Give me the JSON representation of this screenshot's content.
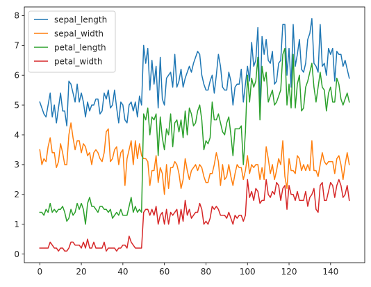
{
  "chart_data": {
    "type": "line",
    "title": "",
    "xlabel": "",
    "ylabel": "",
    "xlim": [
      -7.45,
      156.45
    ],
    "ylim": [
      -0.29,
      8.29
    ],
    "xticks": [
      0,
      20,
      40,
      60,
      80,
      100,
      120,
      140
    ],
    "yticks": [
      0,
      1,
      2,
      3,
      4,
      5,
      6,
      7,
      8
    ],
    "grid": false,
    "legend": "upper left",
    "x": [
      0,
      1,
      2,
      3,
      4,
      5,
      6,
      7,
      8,
      9,
      10,
      11,
      12,
      13,
      14,
      15,
      16,
      17,
      18,
      19,
      20,
      21,
      22,
      23,
      24,
      25,
      26,
      27,
      28,
      29,
      30,
      31,
      32,
      33,
      34,
      35,
      36,
      37,
      38,
      39,
      40,
      41,
      42,
      43,
      44,
      45,
      46,
      47,
      48,
      49,
      50,
      51,
      52,
      53,
      54,
      55,
      56,
      57,
      58,
      59,
      60,
      61,
      62,
      63,
      64,
      65,
      66,
      67,
      68,
      69,
      70,
      71,
      72,
      73,
      74,
      75,
      76,
      77,
      78,
      79,
      80,
      81,
      82,
      83,
      84,
      85,
      86,
      87,
      88,
      89,
      90,
      91,
      92,
      93,
      94,
      95,
      96,
      97,
      98,
      99,
      100,
      101,
      102,
      103,
      104,
      105,
      106,
      107,
      108,
      109,
      110,
      111,
      112,
      113,
      114,
      115,
      116,
      117,
      118,
      119,
      120,
      121,
      122,
      123,
      124,
      125,
      126,
      127,
      128,
      129,
      130,
      131,
      132,
      133,
      134,
      135,
      136,
      137,
      138,
      139,
      140,
      141,
      142,
      143,
      144,
      145,
      146,
      147,
      148,
      149
    ],
    "series": [
      {
        "name": "sepal_length",
        "color": "#1f77b4",
        "values": [
          5.1,
          4.9,
          4.7,
          4.6,
          5.0,
          5.4,
          4.6,
          5.0,
          4.4,
          4.9,
          5.4,
          4.8,
          4.8,
          4.3,
          5.8,
          5.7,
          5.4,
          5.1,
          5.7,
          5.1,
          5.4,
          5.1,
          4.6,
          5.1,
          4.8,
          5.0,
          5.0,
          5.2,
          5.2,
          4.7,
          4.8,
          5.4,
          5.2,
          5.5,
          4.9,
          5.0,
          5.5,
          4.9,
          4.4,
          5.1,
          5.0,
          4.5,
          4.4,
          5.0,
          5.1,
          4.8,
          5.1,
          4.6,
          5.3,
          5.0,
          7.0,
          6.4,
          6.9,
          5.5,
          6.5,
          5.7,
          6.3,
          4.9,
          6.6,
          5.2,
          5.0,
          5.9,
          6.0,
          6.1,
          5.6,
          6.7,
          5.6,
          5.8,
          6.2,
          5.6,
          5.9,
          6.1,
          6.3,
          6.1,
          6.4,
          6.6,
          6.8,
          6.7,
          6.0,
          5.7,
          5.5,
          5.5,
          5.8,
          6.0,
          5.4,
          6.0,
          6.7,
          6.3,
          5.6,
          5.5,
          5.5,
          6.1,
          5.8,
          5.0,
          5.6,
          5.7,
          5.7,
          6.2,
          5.1,
          5.7,
          6.3,
          5.8,
          7.1,
          6.3,
          6.5,
          7.6,
          4.9,
          7.3,
          6.7,
          7.2,
          6.5,
          6.4,
          6.8,
          5.7,
          5.8,
          6.4,
          6.5,
          7.7,
          7.7,
          6.0,
          6.9,
          5.6,
          7.7,
          6.3,
          6.7,
          7.2,
          6.2,
          6.1,
          6.4,
          7.2,
          7.4,
          7.9,
          6.4,
          6.3,
          6.1,
          7.7,
          6.3,
          6.4,
          6.0,
          6.9,
          6.7,
          6.9,
          5.8,
          6.8,
          6.7,
          6.7,
          6.3,
          6.5,
          6.2,
          5.9
        ]
      },
      {
        "name": "sepal_width",
        "color": "#ff7f0e",
        "values": [
          3.5,
          3.0,
          3.2,
          3.1,
          3.6,
          3.9,
          3.4,
          3.4,
          2.9,
          3.1,
          3.7,
          3.4,
          3.0,
          3.0,
          4.0,
          4.4,
          3.9,
          3.5,
          3.8,
          3.8,
          3.4,
          3.7,
          3.6,
          3.3,
          3.4,
          3.0,
          3.4,
          3.5,
          3.4,
          3.2,
          3.1,
          3.4,
          4.1,
          4.2,
          3.1,
          3.2,
          3.5,
          3.6,
          3.0,
          3.4,
          3.5,
          2.3,
          3.2,
          3.5,
          3.8,
          3.0,
          3.8,
          3.2,
          3.7,
          3.3,
          3.2,
          3.2,
          3.1,
          2.3,
          2.8,
          2.8,
          3.3,
          2.4,
          2.9,
          2.7,
          2.0,
          3.0,
          2.2,
          2.9,
          2.9,
          3.1,
          3.0,
          2.7,
          2.2,
          2.5,
          3.2,
          2.8,
          2.5,
          2.8,
          2.9,
          3.0,
          2.8,
          3.0,
          2.9,
          2.6,
          2.4,
          2.4,
          2.7,
          2.7,
          3.0,
          3.4,
          3.1,
          2.3,
          3.0,
          2.5,
          2.6,
          3.0,
          2.6,
          2.3,
          2.7,
          3.0,
          2.9,
          2.9,
          2.5,
          2.8,
          3.3,
          2.7,
          3.0,
          2.9,
          3.0,
          3.0,
          2.5,
          2.9,
          2.5,
          3.6,
          3.2,
          2.7,
          3.0,
          2.5,
          2.8,
          3.2,
          3.0,
          3.8,
          2.6,
          2.2,
          3.2,
          2.8,
          2.8,
          2.7,
          3.3,
          3.2,
          2.8,
          3.0,
          2.8,
          3.0,
          2.8,
          3.8,
          2.8,
          2.8,
          2.6,
          3.0,
          3.4,
          3.1,
          3.0,
          3.1,
          3.1,
          3.1,
          2.7,
          3.2,
          3.3,
          3.0,
          2.5,
          3.0,
          3.4,
          3.0
        ]
      },
      {
        "name": "petal_length",
        "color": "#2ca02c",
        "values": [
          1.4,
          1.4,
          1.3,
          1.5,
          1.4,
          1.7,
          1.4,
          1.5,
          1.4,
          1.5,
          1.5,
          1.6,
          1.4,
          1.1,
          1.2,
          1.5,
          1.3,
          1.4,
          1.7,
          1.5,
          1.7,
          1.5,
          1.0,
          1.7,
          1.9,
          1.6,
          1.6,
          1.5,
          1.4,
          1.6,
          1.6,
          1.5,
          1.5,
          1.4,
          1.5,
          1.2,
          1.3,
          1.4,
          1.3,
          1.5,
          1.3,
          1.3,
          1.3,
          1.6,
          1.9,
          1.4,
          1.6,
          1.4,
          1.5,
          1.4,
          4.7,
          4.5,
          4.9,
          4.0,
          4.6,
          4.5,
          4.7,
          3.3,
          4.6,
          3.9,
          3.5,
          4.2,
          4.0,
          4.7,
          3.6,
          4.4,
          4.5,
          4.1,
          4.5,
          3.9,
          4.8,
          4.0,
          4.9,
          4.7,
          4.3,
          4.4,
          4.8,
          5.0,
          4.5,
          3.5,
          3.8,
          3.7,
          3.9,
          5.1,
          4.5,
          4.5,
          4.7,
          4.4,
          4.1,
          4.0,
          4.4,
          4.6,
          4.0,
          3.3,
          4.2,
          4.2,
          4.2,
          4.3,
          3.0,
          4.1,
          6.0,
          5.1,
          5.9,
          5.6,
          5.8,
          6.6,
          4.5,
          6.3,
          5.8,
          6.1,
          5.1,
          5.3,
          5.5,
          5.0,
          5.1,
          5.3,
          5.5,
          6.7,
          6.9,
          5.0,
          5.7,
          4.9,
          6.7,
          4.9,
          5.7,
          6.0,
          4.8,
          4.9,
          5.6,
          5.8,
          6.1,
          6.4,
          5.6,
          5.1,
          5.6,
          6.1,
          5.6,
          5.5,
          4.8,
          5.4,
          5.6,
          5.1,
          5.1,
          5.9,
          5.7,
          5.2,
          5.0,
          5.2,
          5.4,
          5.1
        ]
      },
      {
        "name": "petal_width",
        "color": "#d62728",
        "values": [
          0.2,
          0.2,
          0.2,
          0.2,
          0.2,
          0.4,
          0.3,
          0.2,
          0.2,
          0.1,
          0.2,
          0.2,
          0.1,
          0.1,
          0.2,
          0.4,
          0.4,
          0.3,
          0.3,
          0.3,
          0.2,
          0.4,
          0.2,
          0.5,
          0.2,
          0.2,
          0.4,
          0.2,
          0.2,
          0.2,
          0.2,
          0.4,
          0.1,
          0.2,
          0.2,
          0.2,
          0.2,
          0.1,
          0.2,
          0.2,
          0.3,
          0.3,
          0.2,
          0.6,
          0.4,
          0.3,
          0.2,
          0.2,
          0.2,
          0.2,
          1.4,
          1.5,
          1.5,
          1.3,
          1.5,
          1.3,
          1.6,
          1.0,
          1.3,
          1.4,
          1.0,
          1.5,
          1.0,
          1.4,
          1.3,
          1.4,
          1.5,
          1.0,
          1.5,
          1.1,
          1.8,
          1.3,
          1.5,
          1.2,
          1.3,
          1.4,
          1.4,
          1.7,
          1.5,
          1.0,
          1.1,
          1.0,
          1.2,
          1.6,
          1.5,
          1.6,
          1.5,
          1.3,
          1.3,
          1.3,
          1.2,
          1.4,
          1.2,
          1.0,
          1.3,
          1.2,
          1.3,
          1.3,
          1.1,
          1.3,
          2.5,
          1.9,
          2.1,
          1.8,
          2.2,
          2.1,
          1.7,
          1.8,
          1.8,
          2.5,
          2.0,
          1.9,
          2.1,
          2.0,
          2.4,
          2.3,
          1.8,
          2.2,
          2.3,
          1.5,
          2.3,
          2.0,
          2.0,
          1.8,
          2.1,
          1.8,
          1.8,
          1.8,
          2.1,
          1.6,
          1.9,
          2.0,
          2.2,
          1.5,
          1.4,
          2.3,
          2.4,
          1.8,
          1.8,
          2.1,
          2.4,
          2.3,
          1.9,
          2.3,
          2.5,
          2.3,
          1.9,
          2.0,
          2.3,
          1.8
        ]
      }
    ]
  }
}
